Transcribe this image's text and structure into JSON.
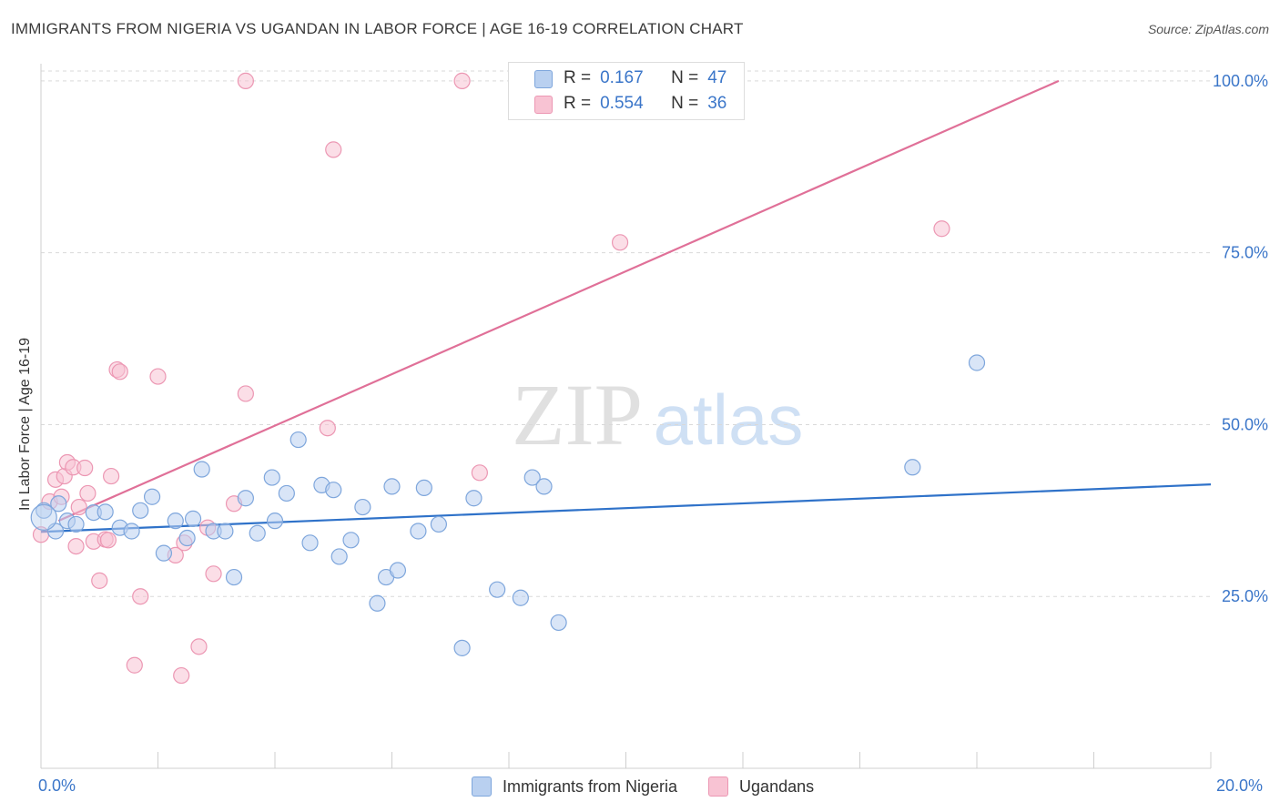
{
  "header": {
    "title": "IMMIGRANTS FROM NIGERIA VS UGANDAN IN LABOR FORCE | AGE 16-19 CORRELATION CHART",
    "source": "Source: ZipAtlas.com"
  },
  "watermark": {
    "zip": "ZIP",
    "atlas": "atlas"
  },
  "legend_top": {
    "rows": [
      {
        "r_label": "R =",
        "r_value": "0.167",
        "n_label": "N =",
        "n_value": "47"
      },
      {
        "r_label": "R =",
        "r_value": "0.554",
        "n_label": "N =",
        "n_value": "36"
      }
    ]
  },
  "legend_bottom": {
    "series_1": "Immigrants from Nigeria",
    "series_2": "Ugandans"
  },
  "colors": {
    "series_1_fill": "#b9d0f0",
    "series_1_stroke": "#7ea6dc",
    "series_1_line": "#2f72c9",
    "series_2_fill": "#f8c3d3",
    "series_2_stroke": "#ec97b3",
    "series_2_line": "#e07098",
    "tick_label": "#3b76c9",
    "grid": "#d9d9d9"
  },
  "chart_data": {
    "type": "scatter",
    "title": "IMMIGRANTS FROM NIGERIA VS UGANDAN IN LABOR FORCE | AGE 16-19 CORRELATION CHART",
    "xlabel": "",
    "ylabel": "In Labor Force | Age 16-19",
    "xlim": [
      0,
      20
    ],
    "ylim": [
      0,
      102.5
    ],
    "x_tick_labels": [
      "0.0%",
      "20.0%"
    ],
    "y_ticks": [
      25,
      50,
      75,
      100
    ],
    "y_tick_labels": [
      "25.0%",
      "50.0%",
      "75.0%",
      "100.0%"
    ],
    "grid": "horizontal dashed",
    "legend_position": "top-center",
    "series": [
      {
        "name": "Immigrants from Nigeria",
        "trend": {
          "x": [
            0,
            20
          ],
          "y": [
            34.4,
            41.3
          ]
        },
        "points": [
          [
            0.05,
            37.5
          ],
          [
            0.25,
            34.5
          ],
          [
            0.9,
            37.2
          ],
          [
            0.45,
            36.0
          ],
          [
            0.6,
            35.5
          ],
          [
            1.35,
            35.0
          ],
          [
            1.1,
            37.3
          ],
          [
            1.55,
            34.5
          ],
          [
            1.7,
            37.5
          ],
          [
            1.9,
            39.5
          ],
          [
            2.1,
            31.3
          ],
          [
            2.3,
            36.0
          ],
          [
            2.5,
            33.5
          ],
          [
            2.6,
            36.3
          ],
          [
            2.75,
            43.5
          ],
          [
            2.95,
            34.5
          ],
          [
            3.15,
            34.5
          ],
          [
            3.3,
            27.8
          ],
          [
            3.5,
            39.3
          ],
          [
            3.7,
            34.2
          ],
          [
            3.95,
            42.3
          ],
          [
            4.0,
            36.0
          ],
          [
            4.2,
            40.0
          ],
          [
            4.4,
            47.8
          ],
          [
            4.6,
            32.8
          ],
          [
            4.8,
            41.2
          ],
          [
            5.0,
            40.5
          ],
          [
            5.1,
            30.8
          ],
          [
            5.3,
            33.2
          ],
          [
            5.5,
            38.0
          ],
          [
            5.75,
            24.0
          ],
          [
            5.9,
            27.8
          ],
          [
            6.0,
            41.0
          ],
          [
            6.1,
            28.8
          ],
          [
            6.45,
            34.5
          ],
          [
            6.55,
            40.8
          ],
          [
            6.8,
            35.5
          ],
          [
            7.2,
            17.5
          ],
          [
            7.4,
            39.3
          ],
          [
            7.8,
            26.0
          ],
          [
            8.2,
            24.8
          ],
          [
            8.4,
            42.3
          ],
          [
            8.6,
            41.0
          ],
          [
            8.85,
            21.2
          ],
          [
            14.9,
            43.8
          ],
          [
            16.0,
            59.0
          ],
          [
            0.3,
            38.5
          ]
        ]
      },
      {
        "name": "Ugandans",
        "trend": {
          "x": [
            0.3,
            17.4
          ],
          "y": [
            36.0,
            100.0
          ]
        },
        "points": [
          [
            0.0,
            34.0
          ],
          [
            0.15,
            38.8
          ],
          [
            0.25,
            42.0
          ],
          [
            0.35,
            39.5
          ],
          [
            0.4,
            42.5
          ],
          [
            0.45,
            44.5
          ],
          [
            0.55,
            43.8
          ],
          [
            0.6,
            32.3
          ],
          [
            0.65,
            38.0
          ],
          [
            0.75,
            43.7
          ],
          [
            0.8,
            40.0
          ],
          [
            0.9,
            33.0
          ],
          [
            1.0,
            27.3
          ],
          [
            1.1,
            33.3
          ],
          [
            1.15,
            33.2
          ],
          [
            1.2,
            42.5
          ],
          [
            1.3,
            58.0
          ],
          [
            1.35,
            57.7
          ],
          [
            1.6,
            15.0
          ],
          [
            1.7,
            25.0
          ],
          [
            2.0,
            57.0
          ],
          [
            2.3,
            31.0
          ],
          [
            2.4,
            13.5
          ],
          [
            2.45,
            32.8
          ],
          [
            2.7,
            17.7
          ],
          [
            2.95,
            28.3
          ],
          [
            2.85,
            35.0
          ],
          [
            3.3,
            38.5
          ],
          [
            3.5,
            54.5
          ],
          [
            3.5,
            100.0
          ],
          [
            4.9,
            49.5
          ],
          [
            5.0,
            90.0
          ],
          [
            7.2,
            100.0
          ],
          [
            7.5,
            43.0
          ],
          [
            9.9,
            76.5
          ],
          [
            15.4,
            78.5
          ]
        ]
      }
    ]
  }
}
